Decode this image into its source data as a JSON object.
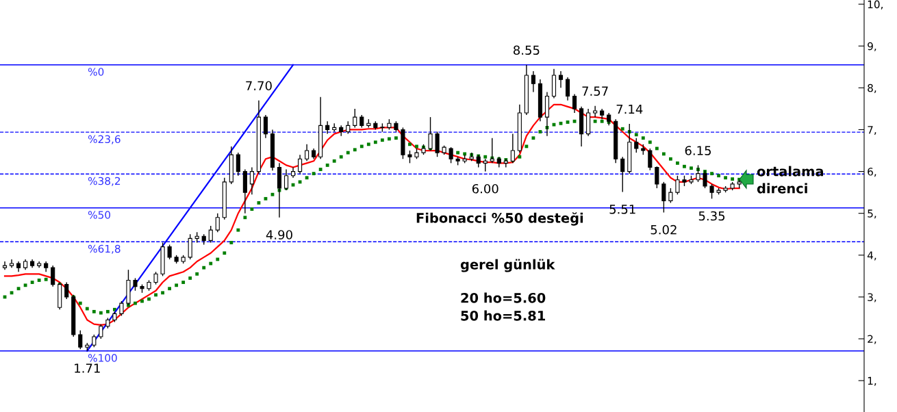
{
  "chart_data": {
    "type": "candlestick",
    "categories": [
      null,
      null,
      null,
      null,
      null,
      null,
      null,
      null,
      null,
      null,
      null,
      null,
      null,
      null,
      null,
      null,
      null,
      null,
      null,
      null,
      null,
      null,
      null,
      null,
      null,
      null,
      null,
      null,
      null,
      null,
      null,
      null,
      null,
      null,
      null,
      null,
      null,
      null,
      null,
      null,
      null,
      null,
      null,
      null,
      null,
      null,
      null,
      null,
      null,
      null,
      null,
      null,
      null,
      null,
      null,
      null,
      null,
      null,
      null,
      null,
      null,
      null,
      null,
      null,
      null,
      null,
      null,
      null,
      null,
      null,
      null,
      null,
      null,
      null,
      null,
      null,
      null,
      null,
      null,
      null,
      null,
      null,
      null,
      null,
      null,
      null,
      null,
      null,
      null,
      null,
      null,
      null,
      null,
      null,
      null,
      null,
      null,
      null,
      null,
      null,
      null,
      null,
      null,
      null,
      null,
      null,
      null,
      null
    ],
    "ohlc": [
      [
        3.7,
        3.85,
        3.65,
        3.75
      ],
      [
        3.75,
        3.9,
        3.7,
        3.8
      ],
      [
        3.8,
        3.85,
        3.6,
        3.7
      ],
      [
        3.7,
        3.9,
        3.65,
        3.85
      ],
      [
        3.85,
        3.9,
        3.7,
        3.75
      ],
      [
        3.75,
        3.85,
        3.7,
        3.8
      ],
      [
        3.8,
        3.85,
        3.6,
        3.7
      ],
      [
        3.7,
        3.75,
        3.25,
        3.3
      ],
      [
        2.75,
        3.35,
        2.7,
        3.3
      ],
      [
        3.3,
        3.35,
        2.95,
        3.0
      ],
      [
        3.0,
        3.05,
        2.05,
        2.1
      ],
      [
        2.1,
        2.2,
        1.75,
        1.8
      ],
      [
        1.8,
        1.9,
        1.71,
        1.85
      ],
      [
        1.85,
        2.1,
        1.8,
        2.05
      ],
      [
        2.05,
        2.35,
        2.0,
        2.3
      ],
      [
        2.3,
        2.5,
        2.25,
        2.45
      ],
      [
        2.45,
        2.65,
        2.4,
        2.6
      ],
      [
        2.6,
        2.9,
        2.55,
        2.85
      ],
      [
        2.85,
        3.65,
        2.8,
        3.4
      ],
      [
        3.4,
        3.45,
        3.15,
        3.25
      ],
      [
        3.25,
        3.3,
        3.1,
        3.2
      ],
      [
        3.2,
        3.4,
        3.15,
        3.35
      ],
      [
        3.35,
        3.6,
        3.3,
        3.55
      ],
      [
        3.55,
        4.3,
        3.5,
        4.2
      ],
      [
        4.2,
        4.25,
        3.9,
        3.95
      ],
      [
        3.95,
        4.0,
        3.8,
        3.85
      ],
      [
        3.85,
        4.0,
        3.8,
        3.95
      ],
      [
        3.95,
        4.5,
        3.9,
        4.4
      ],
      [
        4.4,
        4.55,
        4.3,
        4.45
      ],
      [
        4.45,
        4.5,
        4.25,
        4.35
      ],
      [
        4.35,
        4.7,
        4.3,
        4.6
      ],
      [
        4.6,
        5.0,
        4.55,
        4.9
      ],
      [
        4.9,
        5.85,
        4.85,
        5.75
      ],
      [
        5.75,
        6.6,
        5.7,
        6.4
      ],
      [
        6.4,
        6.45,
        5.9,
        6.0
      ],
      [
        6.0,
        6.05,
        5.0,
        5.5
      ],
      [
        5.7,
        6.1,
        5.45,
        6.0
      ],
      [
        6.0,
        7.7,
        5.95,
        7.3
      ],
      [
        7.3,
        7.35,
        6.8,
        6.9
      ],
      [
        6.9,
        7.0,
        6.02,
        6.1
      ],
      [
        6.1,
        6.2,
        4.9,
        5.6
      ],
      [
        5.6,
        6.05,
        5.55,
        5.9
      ],
      [
        5.9,
        6.1,
        5.85,
        6.0
      ],
      [
        6.0,
        6.4,
        5.95,
        6.3
      ],
      [
        6.3,
        6.65,
        6.25,
        6.5
      ],
      [
        6.5,
        6.55,
        6.3,
        6.35
      ],
      [
        6.35,
        7.78,
        6.3,
        7.1
      ],
      [
        7.1,
        7.2,
        6.9,
        7.0
      ],
      [
        7.0,
        7.15,
        6.95,
        7.05
      ],
      [
        7.05,
        7.1,
        6.85,
        6.95
      ],
      [
        6.95,
        7.2,
        6.9,
        7.1
      ],
      [
        7.1,
        7.5,
        7.05,
        7.3
      ],
      [
        7.3,
        7.35,
        7.05,
        7.1
      ],
      [
        7.1,
        7.25,
        7.05,
        7.15
      ],
      [
        7.15,
        7.2,
        7.0,
        7.05
      ],
      [
        7.05,
        7.15,
        6.95,
        7.05
      ],
      [
        7.05,
        7.25,
        7.0,
        7.15
      ],
      [
        7.15,
        7.2,
        6.95,
        7.0
      ],
      [
        7.0,
        7.05,
        6.3,
        6.4
      ],
      [
        6.4,
        6.5,
        6.2,
        6.35
      ],
      [
        6.35,
        6.55,
        6.3,
        6.45
      ],
      [
        6.45,
        6.65,
        6.4,
        6.55
      ],
      [
        6.55,
        7.3,
        6.5,
        6.9
      ],
      [
        6.9,
        6.95,
        6.35,
        6.45
      ],
      [
        6.45,
        6.62,
        6.4,
        6.58
      ],
      [
        6.55,
        6.58,
        6.2,
        6.3
      ],
      [
        6.3,
        6.35,
        6.15,
        6.25
      ],
      [
        6.25,
        6.4,
        6.2,
        6.3
      ],
      [
        6.3,
        6.45,
        6.25,
        6.35
      ],
      [
        6.35,
        6.4,
        6.1,
        6.2
      ],
      [
        6.2,
        6.3,
        6.0,
        6.25
      ],
      [
        6.25,
        6.8,
        6.2,
        6.3
      ],
      [
        6.3,
        6.35,
        6.1,
        6.2
      ],
      [
        6.2,
        6.3,
        6.1,
        6.25
      ],
      [
        6.25,
        6.9,
        6.2,
        6.5
      ],
      [
        6.5,
        7.6,
        6.45,
        7.4
      ],
      [
        7.4,
        8.55,
        7.35,
        8.3
      ],
      [
        8.3,
        8.4,
        7.9,
        8.1
      ],
      [
        8.1,
        8.2,
        7.2,
        7.3
      ],
      [
        7.3,
        7.9,
        6.85,
        7.8
      ],
      [
        7.8,
        8.45,
        7.75,
        8.3
      ],
      [
        8.3,
        8.4,
        8.0,
        8.2
      ],
      [
        8.2,
        8.25,
        7.7,
        7.8
      ],
      [
        7.8,
        7.85,
        7.4,
        7.5
      ],
      [
        7.5,
        7.55,
        6.6,
        6.9
      ],
      [
        6.9,
        7.5,
        6.85,
        7.4
      ],
      [
        7.4,
        7.57,
        7.3,
        7.45
      ],
      [
        7.45,
        7.5,
        7.25,
        7.35
      ],
      [
        7.35,
        7.4,
        7.1,
        7.2
      ],
      [
        7.2,
        7.25,
        6.2,
        6.3
      ],
      [
        6.3,
        6.35,
        5.51,
        6.0
      ],
      [
        6.0,
        7.14,
        5.95,
        6.7
      ],
      [
        6.7,
        6.8,
        6.45,
        6.55
      ],
      [
        6.55,
        6.65,
        6.4,
        6.5
      ],
      [
        6.5,
        6.55,
        6.03,
        6.1
      ],
      [
        6.1,
        6.12,
        5.6,
        5.7
      ],
      [
        5.7,
        5.75,
        5.02,
        5.3
      ],
      [
        5.3,
        5.6,
        5.25,
        5.5
      ],
      [
        5.5,
        5.9,
        5.45,
        5.8
      ],
      [
        5.8,
        5.9,
        5.65,
        5.75
      ],
      [
        5.75,
        5.9,
        5.7,
        5.8
      ],
      [
        5.8,
        6.15,
        5.75,
        5.95
      ],
      [
        5.95,
        6.02,
        5.6,
        5.65
      ],
      [
        5.65,
        5.7,
        5.35,
        5.5
      ],
      [
        5.5,
        5.6,
        5.45,
        5.55
      ],
      [
        5.55,
        5.65,
        5.5,
        5.6
      ],
      [
        5.6,
        5.75,
        5.55,
        5.7
      ],
      [
        5.7,
        5.8,
        5.6,
        5.75
      ]
    ],
    "series": [
      {
        "type": "line",
        "color": "#ff0000",
        "marker": "none",
        "line_style": "solid",
        "values": [
          3.5,
          3.5,
          3.52,
          3.55,
          3.55,
          3.55,
          3.5,
          3.45,
          3.35,
          3.2,
          3.0,
          2.75,
          2.45,
          2.35,
          2.33,
          2.35,
          2.45,
          2.6,
          2.75,
          2.85,
          2.95,
          3.05,
          3.15,
          3.35,
          3.5,
          3.55,
          3.6,
          3.7,
          3.85,
          3.95,
          4.05,
          4.2,
          4.35,
          4.6,
          5.0,
          5.3,
          5.6,
          6.0,
          6.3,
          6.35,
          6.25,
          6.15,
          6.1,
          6.15,
          6.2,
          6.25,
          6.5,
          6.75,
          6.9,
          6.95,
          7.0,
          7.0,
          7.0,
          7.02,
          7.02,
          7.05,
          7.05,
          7.05,
          6.85,
          6.7,
          6.55,
          6.5,
          6.5,
          6.5,
          6.45,
          6.4,
          6.35,
          6.3,
          6.28,
          6.25,
          6.22,
          6.22,
          6.2,
          6.2,
          6.22,
          6.4,
          6.85,
          7.1,
          7.3,
          7.45,
          7.6,
          7.6,
          7.55,
          7.5,
          7.4,
          7.3,
          7.3,
          7.28,
          7.25,
          7.1,
          6.95,
          6.8,
          6.7,
          6.6,
          6.45,
          6.25,
          6.05,
          5.85,
          5.75,
          5.75,
          5.8,
          5.85,
          5.8,
          5.7,
          5.62,
          5.58,
          5.6,
          5.6
        ]
      },
      {
        "type": "scatter",
        "color": "#008000",
        "marker": "square",
        "values": [
          3.0,
          3.1,
          3.2,
          3.28,
          3.35,
          3.4,
          3.42,
          3.4,
          3.3,
          3.15,
          3.0,
          2.85,
          2.72,
          2.65,
          2.62,
          2.65,
          2.7,
          null,
          2.8,
          2.85,
          2.9,
          2.95,
          3.05,
          3.1,
          3.2,
          3.28,
          3.35,
          3.45,
          3.55,
          3.7,
          3.8,
          3.9,
          4.05,
          4.3,
          4.6,
          4.9,
          5.1,
          5.25,
          5.35,
          5.45,
          5.55,
          5.6,
          5.68,
          5.75,
          5.85,
          5.95,
          6.05,
          6.15,
          6.25,
          6.35,
          6.45,
          6.52,
          6.6,
          6.65,
          6.7,
          6.75,
          6.78,
          6.8,
          null,
          6.65,
          6.6,
          6.58,
          6.55,
          6.52,
          6.5,
          6.47,
          6.45,
          6.42,
          6.4,
          6.37,
          6.35,
          6.32,
          6.3,
          6.28,
          6.27,
          6.35,
          6.6,
          6.8,
          6.95,
          7.05,
          7.12,
          7.15,
          7.18,
          7.2,
          null,
          null,
          7.2,
          7.2,
          7.18,
          7.1,
          7.02,
          6.95,
          6.88,
          6.8,
          6.7,
          6.55,
          6.42,
          6.3,
          6.2,
          6.12,
          6.08,
          6.05,
          6.0,
          5.95,
          5.9,
          5.85,
          5.82,
          5.81
        ]
      },
      {
        "type": "line",
        "color": "#0000ff",
        "marker": "none",
        "line_style": "solid",
        "values": [
          null,
          null,
          null,
          null,
          null,
          null,
          null,
          null,
          null,
          null,
          null,
          null,
          1.71,
          null,
          null,
          null,
          null,
          null,
          null,
          null,
          null,
          null,
          null,
          null,
          null,
          null,
          null,
          null,
          null,
          null,
          null,
          null,
          null,
          null,
          null,
          null,
          null,
          null,
          null,
          null,
          null,
          null,
          8.55,
          null,
          null,
          null,
          null,
          null,
          null,
          null,
          null,
          null,
          null,
          null,
          null,
          null,
          null,
          null,
          null,
          null,
          null,
          null,
          null,
          null,
          null,
          null,
          null,
          null,
          null,
          null,
          null,
          null,
          null,
          null,
          null,
          null,
          null,
          null,
          null,
          null,
          null,
          null,
          null,
          null,
          null,
          null,
          null,
          null,
          null,
          null,
          null,
          null,
          null,
          null,
          null,
          null,
          null,
          null,
          null,
          null,
          null,
          null,
          null,
          null,
          null,
          null,
          null,
          null
        ]
      }
    ],
    "ylim": [
      0.25,
      10.1
    ],
    "yticks": [
      {
        "value": 1,
        "label": "1,"
      },
      {
        "value": 2,
        "label": "2,"
      },
      {
        "value": 3,
        "label": "3,"
      },
      {
        "value": 4,
        "label": "4,"
      },
      {
        "value": 5,
        "label": "5,"
      },
      {
        "value": 6,
        "label": "6,"
      },
      {
        "value": 7,
        "label": "7,"
      },
      {
        "value": 8,
        "label": "8,"
      },
      {
        "value": 9,
        "label": "9,"
      },
      {
        "value": 10,
        "label": "10,"
      }
    ],
    "tick_labels": "y",
    "grid": false,
    "ref_lines": [
      {
        "axis": "y",
        "value": 8.55,
        "color": "#0000ff",
        "line_style": "solid"
      },
      {
        "axis": "y",
        "value": 6.94,
        "color": "#0000ff",
        "line_style": "dashed"
      },
      {
        "axis": "y",
        "value": 5.94,
        "color": "#0000ff",
        "line_style": "dashed"
      },
      {
        "axis": "y",
        "value": 5.13,
        "color": "#0000ff",
        "line_style": "solid"
      },
      {
        "axis": "y",
        "value": 4.32,
        "color": "#0000ff",
        "line_style": "dashed"
      },
      {
        "axis": "y",
        "value": 1.71,
        "color": "#0000ff",
        "line_style": "solid"
      }
    ],
    "annotations": [
      {
        "text": "%0",
        "y": 8.55
      },
      {
        "text": "%23,6",
        "y": 6.94
      },
      {
        "text": "%38,2",
        "y": 5.94
      },
      {
        "text": "%50",
        "y": 5.13
      },
      {
        "text": "%61,8",
        "y": 4.32
      },
      {
        "text": "%100",
        "y": 1.71
      },
      {
        "text": "8.55",
        "y": 8.55
      },
      {
        "text": "7.70",
        "y": 7.7
      },
      {
        "text": "7.57",
        "y": 7.57
      },
      {
        "text": "7.14",
        "y": 7.14
      },
      {
        "text": "6.15",
        "y": 6.15
      },
      {
        "text": "6.00",
        "y": 6.0
      },
      {
        "text": "5.51",
        "y": 5.51
      },
      {
        "text": "4.90",
        "y": 4.9
      },
      {
        "text": "5.02",
        "y": 5.02
      },
      {
        "text": "5.35",
        "y": 5.35
      },
      {
        "text": "1.71",
        "y": 1.71
      },
      "Fibonacci %50 desteği",
      "gerel günlük",
      "20 ho=5.60",
      "50 ho=5.81",
      "ortalama",
      "direnci"
    ]
  }
}
